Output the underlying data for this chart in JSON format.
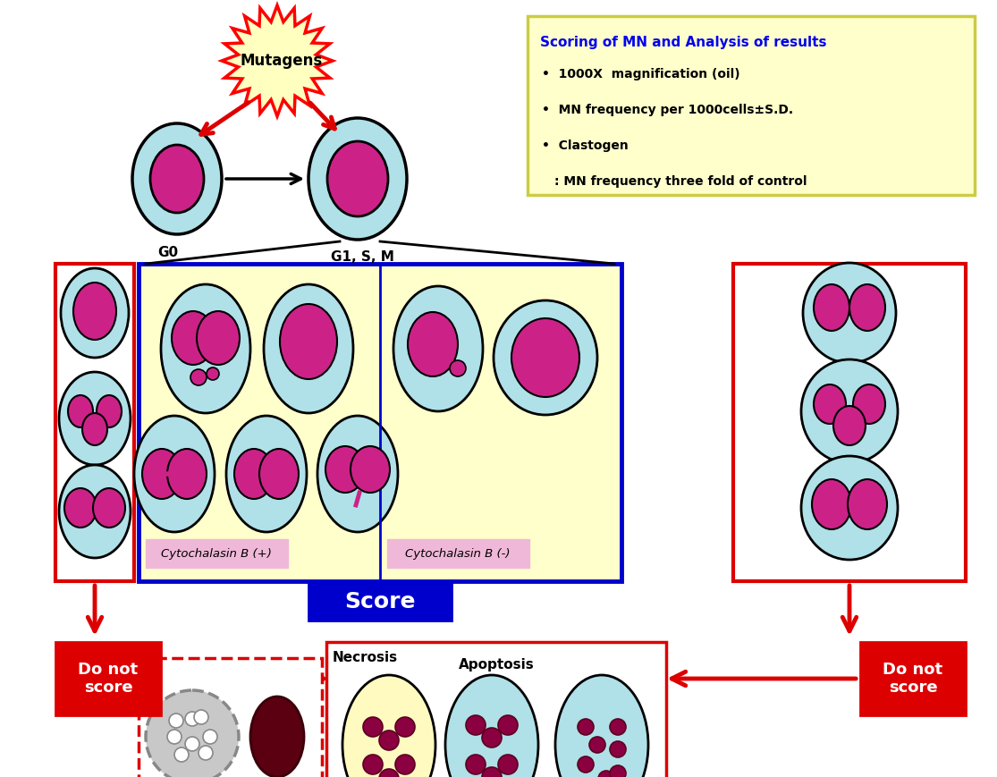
{
  "bg_color": "#ffffff",
  "cell_outer_color": "#b0e0e8",
  "cell_inner_color": "#cc2288",
  "cell_border_color": "#000000",
  "mutagen_burst_fill": "#ffffc0",
  "mutagen_burst_edge": "#ff0000",
  "mutagen_text": "Mutagens",
  "g0_label": "G0",
  "g1sm_label": "G1, S, M",
  "scoring_box_bg": "#ffffcc",
  "scoring_box_border": "#cccc44",
  "scoring_title": "Scoring of MN and Analysis of results",
  "scoring_title_color": "#0000ee",
  "scoring_bullets": [
    "1000X  magnification (oil)",
    "MN frequency per 1000cells±S.D.",
    "Clastogen",
    ": MN frequency three fold of control"
  ],
  "cytob_pos_label": "Cytochalasin B (+)",
  "cytob_neg_label": "Cytochalasin B (-)",
  "cytob_label_bg": "#f0c8e0",
  "score_label": "Score",
  "score_bg": "#0000cc",
  "score_color": "#ffffff",
  "do_not_score_bg": "#dd0000",
  "do_not_score_text_color": "#ffffff",
  "necrosis_label": "Necrosis",
  "apoptosis_label": "Apoptosis",
  "left_box_border": "#dd0000",
  "right_box_border": "#dd0000",
  "main_box_border": "#0000cc",
  "main_box_bg": "#ffffcc",
  "red": "#dd0000",
  "black": "#000000"
}
